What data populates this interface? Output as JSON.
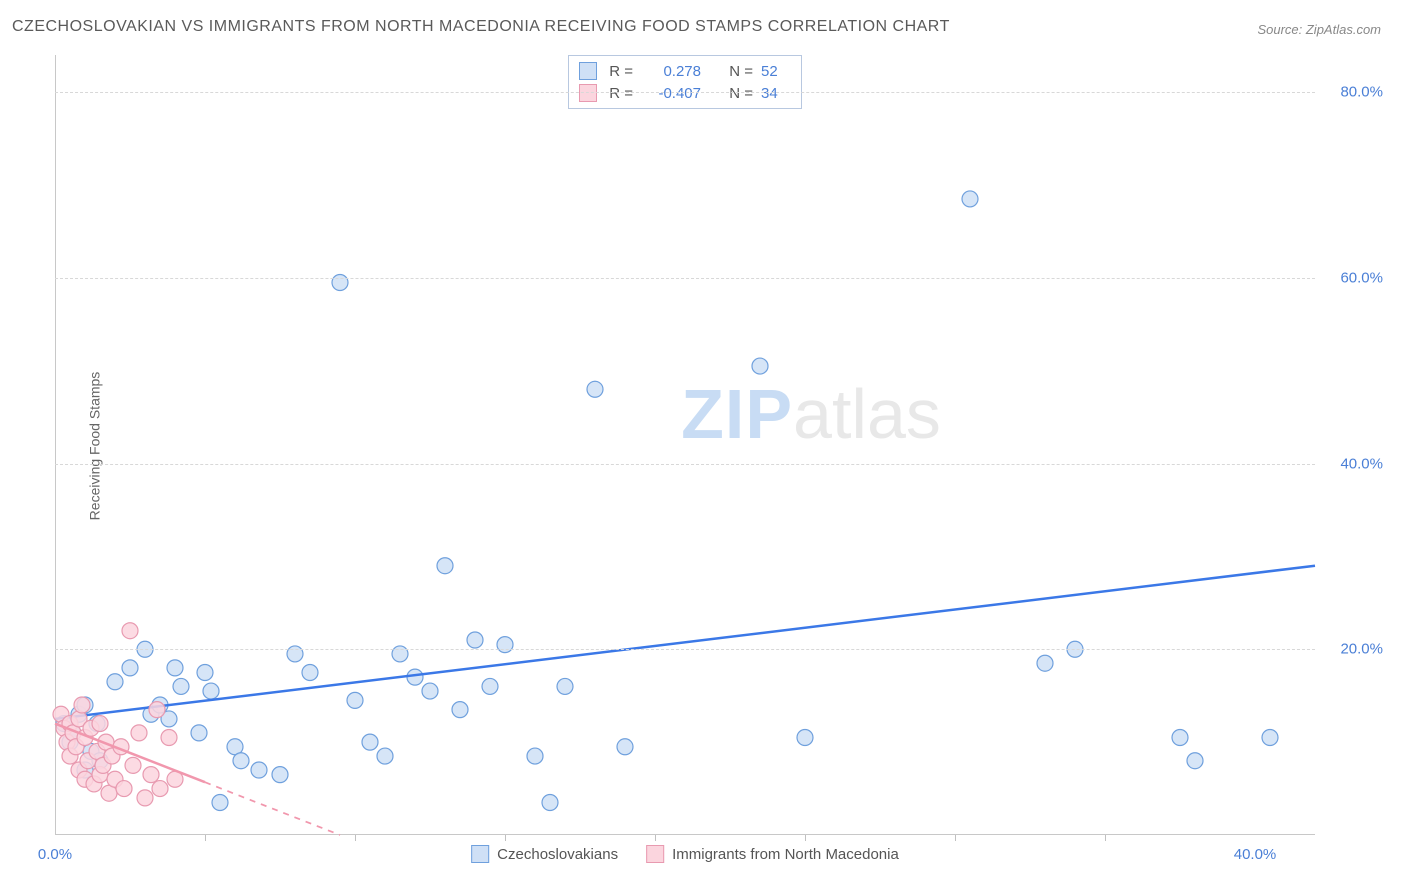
{
  "title": "CZECHOSLOVAKIAN VS IMMIGRANTS FROM NORTH MACEDONIA RECEIVING FOOD STAMPS CORRELATION CHART",
  "source": "Source: ZipAtlas.com",
  "ylabel": "Receiving Food Stamps",
  "watermark_a": "ZIP",
  "watermark_b": "atlas",
  "chart": {
    "type": "scatter",
    "xlim": [
      0,
      42
    ],
    "ylim": [
      0,
      84
    ],
    "xticks": [
      0,
      40
    ],
    "xtick_labels": [
      "0.0%",
      "40.0%"
    ],
    "xtick_minor": [
      5,
      10,
      15,
      20,
      25,
      30,
      35
    ],
    "yticks": [
      20,
      40,
      60,
      80
    ],
    "ytick_labels": [
      "20.0%",
      "40.0%",
      "60.0%",
      "80.0%"
    ],
    "background_color": "#ffffff",
    "grid_color": "#d8d8d8",
    "axis_color": "#c8c8c8",
    "series": [
      {
        "name": "Czechoslovakians",
        "marker_fill": "#cfe0f6",
        "marker_stroke": "#6fa0dd",
        "marker_radius": 8,
        "line_color": "#3b78e7",
        "line_width": 2.5,
        "line_dash": "none",
        "trend": {
          "x1": 0,
          "y1": 12.5,
          "x2": 42,
          "y2": 29.0
        },
        "stats": {
          "R": "0.278",
          "N": "52"
        },
        "points": [
          [
            0.3,
            12
          ],
          [
            0.5,
            10
          ],
          [
            0.6,
            11
          ],
          [
            0.8,
            13
          ],
          [
            1.0,
            7
          ],
          [
            1.0,
            14
          ],
          [
            1.2,
            9
          ],
          [
            1.4,
            12
          ],
          [
            1.5,
            8
          ],
          [
            2.0,
            16.5
          ],
          [
            2.5,
            18
          ],
          [
            3.0,
            20
          ],
          [
            3.2,
            13
          ],
          [
            3.5,
            14
          ],
          [
            3.8,
            12.5
          ],
          [
            4.0,
            18
          ],
          [
            4.2,
            16
          ],
          [
            4.8,
            11
          ],
          [
            5.0,
            17.5
          ],
          [
            5.2,
            15.5
          ],
          [
            5.5,
            3.5
          ],
          [
            6.0,
            9.5
          ],
          [
            6.2,
            8.0
          ],
          [
            6.8,
            7.0
          ],
          [
            7.5,
            6.5
          ],
          [
            8.0,
            19.5
          ],
          [
            8.5,
            17.5
          ],
          [
            9.5,
            59.5
          ],
          [
            10.0,
            14.5
          ],
          [
            10.5,
            10.0
          ],
          [
            11.0,
            8.5
          ],
          [
            11.5,
            19.5
          ],
          [
            12.0,
            17.0
          ],
          [
            12.5,
            15.5
          ],
          [
            13.0,
            29.0
          ],
          [
            13.5,
            13.5
          ],
          [
            14.0,
            21.0
          ],
          [
            14.5,
            16.0
          ],
          [
            15.0,
            20.5
          ],
          [
            16.0,
            8.5
          ],
          [
            16.5,
            3.5
          ],
          [
            17.0,
            16.0
          ],
          [
            18.0,
            48.0
          ],
          [
            19.0,
            9.5
          ],
          [
            23.5,
            50.5
          ],
          [
            25.0,
            10.5
          ],
          [
            30.5,
            68.5
          ],
          [
            33.0,
            18.5
          ],
          [
            34.0,
            20.0
          ],
          [
            37.5,
            10.5
          ],
          [
            38.0,
            8.0
          ],
          [
            40.5,
            10.5
          ]
        ]
      },
      {
        "name": "Immigrants from North Macedonia",
        "marker_fill": "#fbd5de",
        "marker_stroke": "#e89ab0",
        "marker_radius": 8,
        "line_color": "#f197ad",
        "line_width": 2.5,
        "line_dash": "solid_then_dash",
        "trend": {
          "x1": 0,
          "y1": 12.0,
          "x2": 9.5,
          "y2": 0.0
        },
        "stats": {
          "R": "-0.407",
          "N": "34"
        },
        "points": [
          [
            0.2,
            13.0
          ],
          [
            0.3,
            11.5
          ],
          [
            0.4,
            10.0
          ],
          [
            0.5,
            12.0
          ],
          [
            0.5,
            8.5
          ],
          [
            0.6,
            11.0
          ],
          [
            0.7,
            9.5
          ],
          [
            0.8,
            7.0
          ],
          [
            0.8,
            12.5
          ],
          [
            0.9,
            14.0
          ],
          [
            1.0,
            6.0
          ],
          [
            1.0,
            10.5
          ],
          [
            1.1,
            8.0
          ],
          [
            1.2,
            11.5
          ],
          [
            1.3,
            5.5
          ],
          [
            1.4,
            9.0
          ],
          [
            1.5,
            12.0
          ],
          [
            1.5,
            6.5
          ],
          [
            1.6,
            7.5
          ],
          [
            1.7,
            10.0
          ],
          [
            1.8,
            4.5
          ],
          [
            1.9,
            8.5
          ],
          [
            2.0,
            6.0
          ],
          [
            2.2,
            9.5
          ],
          [
            2.3,
            5.0
          ],
          [
            2.5,
            22.0
          ],
          [
            2.6,
            7.5
          ],
          [
            2.8,
            11.0
          ],
          [
            3.0,
            4.0
          ],
          [
            3.2,
            6.5
          ],
          [
            3.4,
            13.5
          ],
          [
            3.5,
            5.0
          ],
          [
            3.8,
            10.5
          ],
          [
            4.0,
            6.0
          ]
        ]
      }
    ],
    "legend_top_stats_color": "#4a7fd6",
    "ytick_color_blue": "#4a7fd6",
    "xtick_color": "#4a7fd6"
  },
  "bottom_legend": [
    {
      "swatch_fill": "#cfe0f6",
      "swatch_stroke": "#6fa0dd",
      "label": "Czechoslovakians"
    },
    {
      "swatch_fill": "#fbd5de",
      "swatch_stroke": "#e89ab0",
      "label": "Immigrants from North Macedonia"
    }
  ]
}
